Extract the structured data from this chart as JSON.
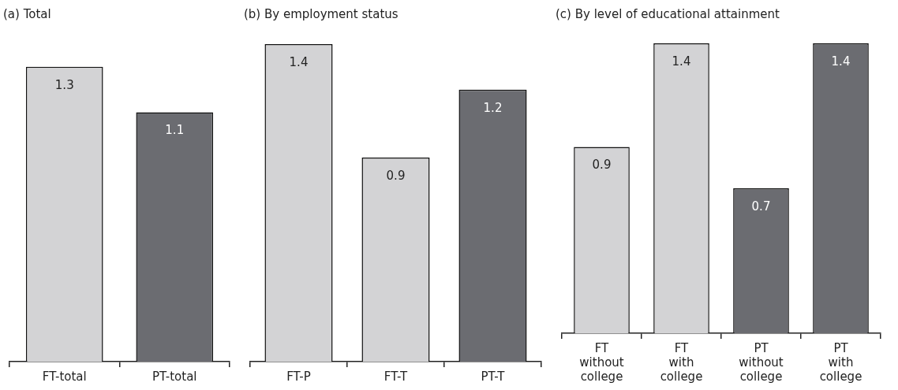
{
  "chart_data": [
    {
      "type": "bar",
      "title": "(a) Total",
      "categories": [
        "FT-total",
        "PT-total"
      ],
      "values": [
        1.3,
        1.1
      ],
      "colors": [
        "#d3d3d5",
        "#6b6c71"
      ],
      "data_labels": true,
      "grid": false,
      "legend": false
    },
    {
      "type": "bar",
      "title": "(b) By employment status",
      "categories": [
        "FT-P",
        "FT-T",
        "PT-T"
      ],
      "values": [
        1.4,
        0.9,
        1.2
      ],
      "colors": [
        "#d3d3d5",
        "#d3d3d5",
        "#6b6c71"
      ],
      "data_labels": true,
      "grid": false,
      "legend": false
    },
    {
      "type": "bar",
      "title": "(c) By level of educational attainment",
      "categories": [
        "FT without college",
        "FT with college",
        "PT without college",
        "PT with college"
      ],
      "values": [
        0.9,
        1.4,
        0.7,
        1.4
      ],
      "colors": [
        "#d3d3d5",
        "#d3d3d5",
        "#6b6c71",
        "#6b6c71"
      ],
      "data_labels": true,
      "grid": false,
      "legend": false
    }
  ]
}
